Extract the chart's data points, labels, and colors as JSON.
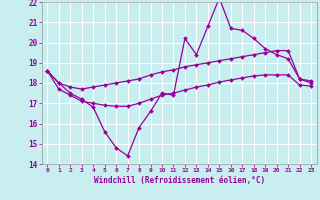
{
  "xlabel": "Windchill (Refroidissement éolien,°C)",
  "background_color": "#c8eef0",
  "grid_color": "#ffffff",
  "line_color": "#990099",
  "x_hours": [
    0,
    1,
    2,
    3,
    4,
    5,
    6,
    7,
    8,
    9,
    10,
    11,
    12,
    13,
    14,
    15,
    16,
    17,
    18,
    19,
    20,
    21,
    22,
    23
  ],
  "y_main": [
    18.6,
    18.0,
    17.5,
    17.2,
    16.8,
    15.6,
    14.8,
    14.4,
    15.8,
    16.6,
    17.5,
    17.4,
    20.2,
    19.4,
    20.8,
    22.2,
    20.7,
    20.6,
    20.2,
    19.7,
    19.4,
    19.2,
    18.2,
    18.1
  ],
  "y_upper": [
    18.6,
    18.0,
    17.8,
    17.7,
    17.8,
    17.9,
    18.0,
    18.1,
    18.2,
    18.4,
    18.55,
    18.65,
    18.8,
    18.9,
    19.0,
    19.1,
    19.2,
    19.3,
    19.4,
    19.5,
    19.6,
    19.6,
    18.2,
    18.0
  ],
  "y_lower": [
    18.6,
    17.7,
    17.4,
    17.1,
    17.0,
    16.9,
    16.85,
    16.85,
    17.0,
    17.2,
    17.4,
    17.5,
    17.65,
    17.8,
    17.9,
    18.05,
    18.15,
    18.25,
    18.35,
    18.4,
    18.4,
    18.4,
    17.9,
    17.85
  ],
  "ylim": [
    14,
    22
  ],
  "xlim": [
    -0.5,
    23.5
  ],
  "yticks": [
    14,
    15,
    16,
    17,
    18,
    19,
    20,
    21,
    22
  ],
  "xtick_labels": [
    "0",
    "1",
    "2",
    "3",
    "4",
    "5",
    "6",
    "7",
    "8",
    "9",
    "10",
    "11",
    "12",
    "13",
    "14",
    "15",
    "16",
    "17",
    "18",
    "19",
    "20",
    "21",
    "22",
    "23"
  ]
}
